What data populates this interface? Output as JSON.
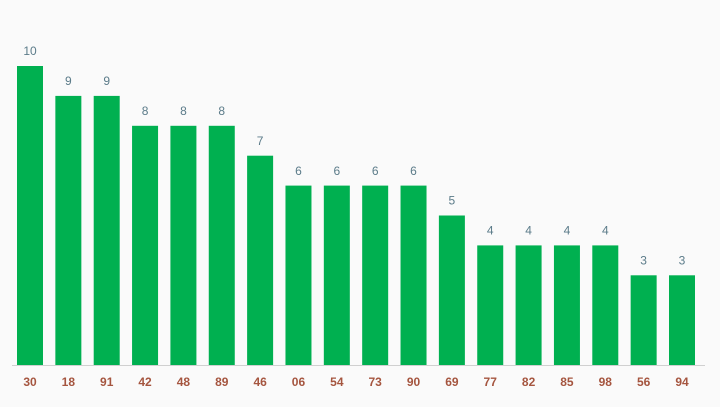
{
  "chart_data": {
    "type": "bar",
    "categories": [
      "30",
      "18",
      "91",
      "42",
      "48",
      "89",
      "46",
      "06",
      "54",
      "73",
      "90",
      "69",
      "77",
      "82",
      "85",
      "98",
      "56",
      "94"
    ],
    "values": [
      10,
      9,
      9,
      8,
      8,
      8,
      7,
      6,
      6,
      6,
      6,
      5,
      4,
      4,
      4,
      4,
      3,
      3
    ],
    "color": "#00b050"
  }
}
